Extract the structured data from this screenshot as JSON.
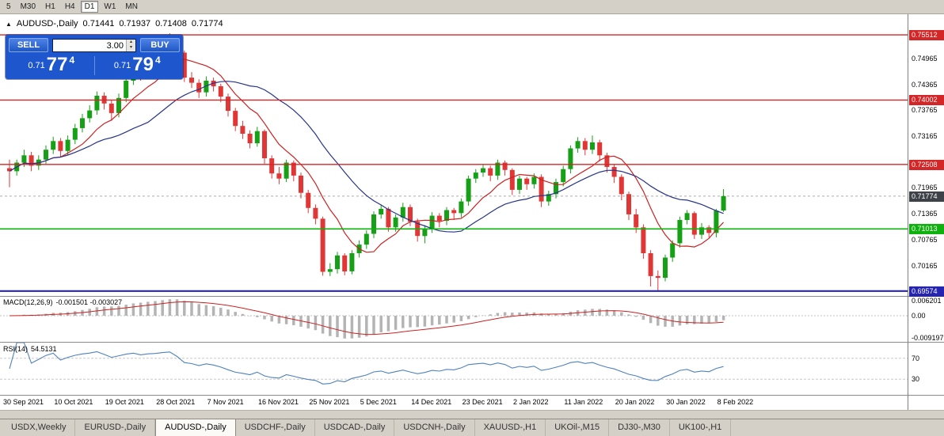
{
  "toolbar": {
    "timeframes": [
      "5",
      "M30",
      "H1",
      "H4",
      "D1",
      "W1",
      "MN"
    ],
    "active": "D1"
  },
  "icons": {
    "collapse_arrow": "▲",
    "spinner_up": "▴",
    "spinner_down": "▾"
  },
  "chart_header": {
    "symbol": "AUDUSD-,Daily",
    "open": "0.71441",
    "high": "0.71937",
    "low": "0.71408",
    "close": "0.71774"
  },
  "trade_panel": {
    "sell_label": "SELL",
    "buy_label": "BUY",
    "volume": "3.00",
    "sell_price_small": "0.71",
    "sell_price_big": "77",
    "sell_price_sup": "4",
    "buy_price_small": "0.71",
    "buy_price_big": "79",
    "buy_price_sup": "4",
    "panel_color": "#1d56cd"
  },
  "price_axis": {
    "plain": [
      "0.74965",
      "0.74365",
      "0.73765",
      "0.73165",
      "0.71965",
      "0.71365",
      "0.70765",
      "0.70165"
    ]
  },
  "levels": [
    {
      "value": 0.75512,
      "label": "0.75512",
      "color": "#d42626",
      "width": 1.4
    },
    {
      "value": 0.74002,
      "label": "0.74002",
      "color": "#d42626",
      "width": 1.4
    },
    {
      "value": 0.72508,
      "label": "0.72508",
      "color": "#d42626",
      "width": 1.4
    },
    {
      "value": 0.71013,
      "label": "0.71013",
      "color": "#0fb10f",
      "width": 1.6
    },
    {
      "value": 0.69574,
      "label": "0.69574",
      "color": "#2424b0",
      "width": 2.2
    }
  ],
  "current_price": {
    "value": 0.71774,
    "label": "0.71774",
    "badge_color": "#3e4147",
    "line_color": "#aaaaaa"
  },
  "macd_panel": {
    "name": "MACD(12,26,9)",
    "values": "-0.001501 -0.003027",
    "axis": [
      {
        "label": "0.006201",
        "value": 0.006201
      },
      {
        "label": "0.00",
        "value": 0
      },
      {
        "label": "-0.009197",
        "value": -0.009197
      }
    ]
  },
  "rsi_panel": {
    "name": "RSI(14)",
    "value": "54.5131",
    "levels": [
      {
        "label": "70",
        "value": 70
      },
      {
        "label": "30",
        "value": 30
      }
    ]
  },
  "tabs": {
    "active": "AUDUSD-,Daily",
    "items": [
      "USDX,Weekly",
      "EURUSD-,Daily",
      "AUDUSD-,Daily",
      "USDCHF-,Daily",
      "USDCAD-,Daily",
      "USDCNH-,Daily",
      "XAUUSD-,H1",
      "UKOil-,M15",
      "DJ30-,M30",
      "UK100-,H1"
    ]
  },
  "chart_data": {
    "type": "candlestick",
    "symbol": "AUDUSD-",
    "timeframe": "Daily",
    "title": "AUDUSD-,Daily 0.71441 0.71937 0.71408 0.71774",
    "y_axis_range": [
      0.6946,
      0.7599
    ],
    "x_tick_step": 7,
    "x_tick_labels": [
      "30 Sep 2021",
      "10 Oct 2021",
      "19 Oct 2021",
      "28 Oct 2021",
      "7 Nov 2021",
      "16 Nov 2021",
      "25 Nov 2021",
      "5 Dec 2021",
      "14 Dec 2021",
      "23 Dec 2021",
      "2 Jan 2022",
      "11 Jan 2022",
      "20 Jan 2022",
      "30 Jan 2022",
      "8 Feb 2022"
    ],
    "ohlc_last": [
      0.71441,
      0.71937,
      0.71408,
      0.71774
    ],
    "colors": {
      "up": "#15a015",
      "down": "#e03636",
      "macd_hist": "#b4b4b4",
      "macd_signal": "#cc2222",
      "rsi_line": "#4f81bd"
    },
    "overlays": [
      {
        "name": "ma-fast",
        "type": "sma",
        "period": 8,
        "color": "#cc2222"
      },
      {
        "name": "ma-slow",
        "type": "sma",
        "period": 20,
        "color": "#27348b"
      }
    ],
    "indicators": [
      {
        "name": "MACD",
        "params": [
          12,
          26,
          9
        ],
        "current": [
          -0.001501,
          -0.003027
        ],
        "axis_range": [
          -0.009197,
          0.006201
        ]
      },
      {
        "name": "RSI",
        "params": [
          14
        ],
        "current": 54.5131,
        "range": [
          0,
          100
        ],
        "levels": [
          30,
          70
        ]
      }
    ],
    "candles": [
      [
        0.7242,
        0.7262,
        0.7198,
        0.7235
      ],
      [
        0.7235,
        0.7262,
        0.7225,
        0.7255
      ],
      [
        0.7255,
        0.7285,
        0.7245,
        0.7272
      ],
      [
        0.7272,
        0.728,
        0.7235,
        0.7248
      ],
      [
        0.7248,
        0.7272,
        0.7238,
        0.7262
      ],
      [
        0.7262,
        0.7295,
        0.7252,
        0.7285
      ],
      [
        0.7285,
        0.7315,
        0.7275,
        0.7305
      ],
      [
        0.7305,
        0.7312,
        0.7268,
        0.7282
      ],
      [
        0.7282,
        0.7318,
        0.7272,
        0.7308
      ],
      [
        0.7308,
        0.7345,
        0.7298,
        0.7335
      ],
      [
        0.7335,
        0.7368,
        0.7325,
        0.7358
      ],
      [
        0.7358,
        0.7388,
        0.7348,
        0.7376
      ],
      [
        0.7376,
        0.742,
        0.7366,
        0.741
      ],
      [
        0.741,
        0.7418,
        0.7378,
        0.7392
      ],
      [
        0.7392,
        0.74,
        0.7352,
        0.737
      ],
      [
        0.737,
        0.7415,
        0.736,
        0.7405
      ],
      [
        0.7405,
        0.7455,
        0.7395,
        0.7445
      ],
      [
        0.7445,
        0.7485,
        0.7435,
        0.7475
      ],
      [
        0.7475,
        0.7482,
        0.7445,
        0.7462
      ],
      [
        0.7462,
        0.7498,
        0.7452,
        0.7488
      ],
      [
        0.7488,
        0.7512,
        0.7478,
        0.75
      ],
      [
        0.75,
        0.7535,
        0.749,
        0.7525
      ],
      [
        0.7525,
        0.7555,
        0.7508,
        0.7545
      ],
      [
        0.7545,
        0.7552,
        0.7498,
        0.751
      ],
      [
        0.751,
        0.7515,
        0.7442,
        0.7452
      ],
      [
        0.7452,
        0.7465,
        0.7428,
        0.744
      ],
      [
        0.744,
        0.7448,
        0.7405,
        0.7418
      ],
      [
        0.7418,
        0.7455,
        0.7408,
        0.7445
      ],
      [
        0.7445,
        0.7452,
        0.742,
        0.7432
      ],
      [
        0.7432,
        0.7438,
        0.7395,
        0.7408
      ],
      [
        0.7408,
        0.7415,
        0.7362,
        0.7375
      ],
      [
        0.7375,
        0.7382,
        0.7328,
        0.734
      ],
      [
        0.734,
        0.7352,
        0.731,
        0.7322
      ],
      [
        0.7322,
        0.733,
        0.7288,
        0.73
      ],
      [
        0.73,
        0.7338,
        0.7292,
        0.7328
      ],
      [
        0.7328,
        0.7332,
        0.7252,
        0.7265
      ],
      [
        0.7265,
        0.7272,
        0.7218,
        0.723
      ],
      [
        0.723,
        0.7245,
        0.7205,
        0.7218
      ],
      [
        0.7218,
        0.7262,
        0.721,
        0.7255
      ],
      [
        0.7255,
        0.726,
        0.7212,
        0.7225
      ],
      [
        0.7225,
        0.7232,
        0.7172,
        0.7185
      ],
      [
        0.7185,
        0.7192,
        0.7138,
        0.715
      ],
      [
        0.715,
        0.7158,
        0.7112,
        0.7125
      ],
      [
        0.7125,
        0.713,
        0.6993,
        0.7002
      ],
      [
        0.7002,
        0.7022,
        0.6992,
        0.7008
      ],
      [
        0.7008,
        0.7048,
        0.6998,
        0.704
      ],
      [
        0.704,
        0.7045,
        0.6994,
        0.7003
      ],
      [
        0.7003,
        0.7052,
        0.6996,
        0.7045
      ],
      [
        0.7045,
        0.7075,
        0.7035,
        0.7065
      ],
      [
        0.7065,
        0.7098,
        0.7055,
        0.709
      ],
      [
        0.709,
        0.7142,
        0.708,
        0.7135
      ],
      [
        0.7135,
        0.7158,
        0.7125,
        0.7148
      ],
      [
        0.7148,
        0.7152,
        0.7095,
        0.7105
      ],
      [
        0.7105,
        0.7135,
        0.7095,
        0.7128
      ],
      [
        0.7128,
        0.7162,
        0.7118,
        0.7152
      ],
      [
        0.7152,
        0.7158,
        0.7108,
        0.7118
      ],
      [
        0.7118,
        0.7125,
        0.7072,
        0.7085
      ],
      [
        0.7085,
        0.711,
        0.7068,
        0.7102
      ],
      [
        0.7102,
        0.714,
        0.7092,
        0.7132
      ],
      [
        0.7132,
        0.7138,
        0.7105,
        0.712
      ],
      [
        0.712,
        0.7152,
        0.711,
        0.7145
      ],
      [
        0.7145,
        0.715,
        0.7122,
        0.7138
      ],
      [
        0.7138,
        0.7172,
        0.7128,
        0.7165
      ],
      [
        0.7165,
        0.7225,
        0.7155,
        0.7218
      ],
      [
        0.7218,
        0.724,
        0.7208,
        0.7232
      ],
      [
        0.7232,
        0.725,
        0.7222,
        0.7242
      ],
      [
        0.7242,
        0.7248,
        0.7212,
        0.7225
      ],
      [
        0.7225,
        0.7262,
        0.7215,
        0.7255
      ],
      [
        0.7255,
        0.726,
        0.7225,
        0.7238
      ],
      [
        0.7238,
        0.7242,
        0.718,
        0.7192
      ],
      [
        0.7192,
        0.7225,
        0.7182,
        0.7218
      ],
      [
        0.7218,
        0.7222,
        0.7192,
        0.7205
      ],
      [
        0.7205,
        0.723,
        0.7195,
        0.7222
      ],
      [
        0.7222,
        0.7228,
        0.7152,
        0.7165
      ],
      [
        0.7165,
        0.719,
        0.7155,
        0.7182
      ],
      [
        0.7182,
        0.7218,
        0.7172,
        0.721
      ],
      [
        0.721,
        0.7248,
        0.72,
        0.724
      ],
      [
        0.724,
        0.7295,
        0.723,
        0.7288
      ],
      [
        0.7288,
        0.7314,
        0.7278,
        0.7305
      ],
      [
        0.7305,
        0.7312,
        0.7272,
        0.7285
      ],
      [
        0.7285,
        0.7318,
        0.7275,
        0.7302
      ],
      [
        0.7302,
        0.7308,
        0.7258,
        0.7272
      ],
      [
        0.7272,
        0.7278,
        0.7232,
        0.7245
      ],
      [
        0.7245,
        0.7252,
        0.7208,
        0.7222
      ],
      [
        0.7222,
        0.7228,
        0.7168,
        0.7182
      ],
      [
        0.7182,
        0.7188,
        0.7122,
        0.7135
      ],
      [
        0.7135,
        0.7148,
        0.7092,
        0.7105
      ],
      [
        0.7105,
        0.7112,
        0.7032,
        0.7045
      ],
      [
        0.7045,
        0.7052,
        0.6968,
        0.6992
      ],
      [
        0.6992,
        0.7005,
        0.6957,
        0.6988
      ],
      [
        0.6988,
        0.7042,
        0.698,
        0.7035
      ],
      [
        0.7035,
        0.7075,
        0.7025,
        0.7068
      ],
      [
        0.7068,
        0.713,
        0.7058,
        0.7122
      ],
      [
        0.7122,
        0.7145,
        0.7112,
        0.7138
      ],
      [
        0.7138,
        0.7142,
        0.7078,
        0.7088
      ],
      [
        0.7088,
        0.7115,
        0.7078,
        0.7105
      ],
      [
        0.7105,
        0.711,
        0.7082,
        0.7092
      ],
      [
        0.7092,
        0.7148,
        0.7082,
        0.7144
      ],
      [
        0.71441,
        0.71937,
        0.71408,
        0.71774
      ]
    ]
  }
}
